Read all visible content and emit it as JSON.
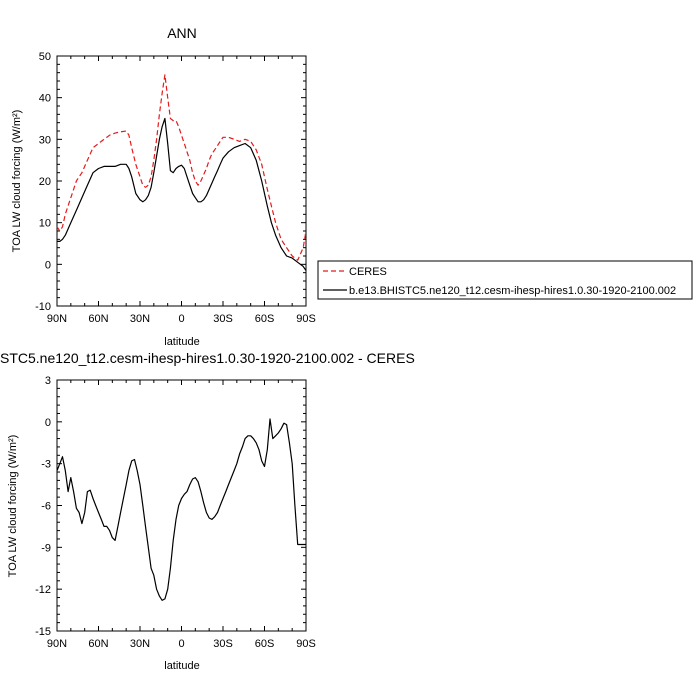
{
  "chart_data": [
    {
      "type": "line",
      "title": "ANN",
      "xlabel": "latitude",
      "ylabel": "TOA LW cloud forcing (W/m²)",
      "xlim": [
        90,
        -90
      ],
      "ylim": [
        -10,
        50
      ],
      "x_ticks": [
        "90N",
        "60N",
        "30N",
        "0",
        "30S",
        "60S",
        "90S"
      ],
      "y_ticks": [
        "-10",
        "0",
        "10",
        "20",
        "30",
        "40",
        "50"
      ],
      "legend": "right",
      "series": [
        {
          "name": "CERES",
          "color": "#e41a1c",
          "dash": "dashed",
          "x": [
            90,
            88,
            86,
            84,
            80,
            76,
            72,
            68,
            64,
            60,
            56,
            52,
            48,
            44,
            40,
            38,
            36,
            33,
            30,
            28,
            26,
            24,
            22,
            20,
            18,
            16,
            14,
            12,
            10,
            8,
            6,
            4,
            2,
            0,
            -2,
            -4,
            -6,
            -8,
            -10,
            -12,
            -14,
            -16,
            -18,
            -20,
            -22,
            -24,
            -26,
            -28,
            -30,
            -34,
            -38,
            -42,
            -46,
            -50,
            -54,
            -58,
            -62,
            -65,
            -68,
            -72,
            -76,
            -80,
            -84,
            -88,
            -90
          ],
          "y": [
            9,
            8,
            9,
            12,
            16,
            20,
            22,
            25,
            28,
            29,
            30,
            31,
            31.5,
            31.8,
            32,
            31,
            28,
            24,
            21,
            19,
            18.5,
            19,
            21,
            25,
            30,
            36,
            41,
            45.5,
            40,
            35,
            34.5,
            34.5,
            33,
            31,
            29,
            27,
            25,
            22,
            20,
            19,
            20,
            21.5,
            23,
            25,
            26.5,
            27.5,
            28.5,
            29.5,
            30.5,
            30.5,
            30,
            29.5,
            30,
            29.5,
            27.5,
            24,
            18,
            14,
            10,
            6,
            4,
            2,
            1,
            4,
            8
          ]
        },
        {
          "name": "b.e13.BHISTC5.ne120_t12.cesm-ihesp-hires1.0.30-1920-2100.002",
          "color": "#000000",
          "dash": "solid",
          "x": [
            90,
            88,
            86,
            84,
            80,
            76,
            72,
            68,
            64,
            60,
            56,
            52,
            48,
            44,
            40,
            38,
            36,
            33,
            30,
            28,
            26,
            24,
            22,
            20,
            18,
            16,
            14,
            12,
            10,
            8,
            6,
            4,
            2,
            0,
            -2,
            -4,
            -6,
            -8,
            -10,
            -12,
            -14,
            -16,
            -18,
            -20,
            -22,
            -24,
            -26,
            -28,
            -30,
            -34,
            -38,
            -42,
            -46,
            -50,
            -54,
            -58,
            -62,
            -65,
            -68,
            -72,
            -76,
            -80,
            -84,
            -88,
            -90
          ],
          "y": [
            5.5,
            5.5,
            6,
            7,
            10,
            13,
            16,
            19,
            22,
            23,
            23.5,
            23.5,
            23.5,
            24,
            24,
            23,
            21,
            17,
            15.5,
            15,
            15.5,
            16.5,
            18.5,
            22,
            26,
            30,
            33,
            35,
            29,
            22.5,
            22,
            23,
            23.5,
            23.8,
            23,
            21,
            19,
            17,
            16,
            15,
            15,
            15.5,
            16.5,
            18,
            19.5,
            21,
            22.5,
            24,
            25.5,
            27,
            28,
            28.5,
            29,
            28,
            25,
            20,
            14,
            10,
            7,
            4,
            2,
            1.5,
            0.5,
            -0.5,
            -1.5
          ]
        }
      ]
    },
    {
      "type": "line",
      "title": "STC5.ne120_t12.cesm-ihesp-hires1.0.30-1920-2100.002 - CERES",
      "xlabel": "latitude",
      "ylabel": "TOA LW cloud forcing (W/m²)",
      "xlim": [
        90,
        -90
      ],
      "ylim": [
        -15,
        3
      ],
      "x_ticks": [
        "90N",
        "60N",
        "30N",
        "0",
        "30S",
        "60S",
        "90S"
      ],
      "y_ticks": [
        "-15",
        "-12",
        "-9",
        "-6",
        "-3",
        "0",
        "3"
      ],
      "series": [
        {
          "color": "#000000",
          "x": [
            90,
            88,
            86,
            84,
            82,
            80,
            78,
            76,
            74,
            72,
            70,
            68,
            66,
            64,
            62,
            60,
            58,
            56,
            54,
            52,
            50,
            48,
            46,
            44,
            42,
            40,
            38,
            36,
            34,
            32,
            30,
            28,
            26,
            24,
            22,
            20,
            18,
            16,
            14,
            12,
            10,
            8,
            6,
            4,
            2,
            0,
            -2,
            -4,
            -6,
            -8,
            -10,
            -12,
            -14,
            -16,
            -18,
            -20,
            -22,
            -24,
            -26,
            -28,
            -30,
            -32,
            -34,
            -36,
            -38,
            -40,
            -42,
            -44,
            -46,
            -48,
            -50,
            -52,
            -54,
            -56,
            -58,
            -60,
            -62,
            -64,
            -66,
            -68,
            -70,
            -72,
            -74,
            -76,
            -78,
            -80,
            -82,
            -84,
            -86,
            -88,
            -90
          ],
          "y": [
            -3.5,
            -3.0,
            -2.5,
            -3.5,
            -5.0,
            -4.0,
            -5.0,
            -6.2,
            -6.5,
            -7.3,
            -6.5,
            -5.0,
            -4.9,
            -5.5,
            -6.0,
            -6.5,
            -7.0,
            -7.5,
            -7.5,
            -7.8,
            -8.3,
            -8.5,
            -7.5,
            -6.5,
            -5.5,
            -4.5,
            -3.5,
            -2.8,
            -2.7,
            -3.5,
            -4.5,
            -6.0,
            -7.5,
            -9.0,
            -10.5,
            -11.0,
            -12.0,
            -12.5,
            -12.8,
            -12.7,
            -12.0,
            -10.5,
            -8.5,
            -7.0,
            -6.0,
            -5.5,
            -5.2,
            -5.0,
            -4.5,
            -4.1,
            -4.0,
            -4.3,
            -5.0,
            -5.8,
            -6.5,
            -6.9,
            -7.0,
            -6.8,
            -6.5,
            -6.0,
            -5.5,
            -5.0,
            -4.5,
            -4.0,
            -3.5,
            -3.0,
            -2.3,
            -1.8,
            -1.2,
            -1.0,
            -1.0,
            -1.2,
            -1.5,
            -2.0,
            -2.8,
            -3.2,
            -2.0,
            0.2,
            -1.2,
            -1.0,
            -0.8,
            -0.5,
            -0.1,
            -0.2,
            -1.5,
            -3.0,
            -6.0,
            -8.8,
            -8.8,
            -8.8,
            -8.8
          ]
        }
      ]
    }
  ]
}
